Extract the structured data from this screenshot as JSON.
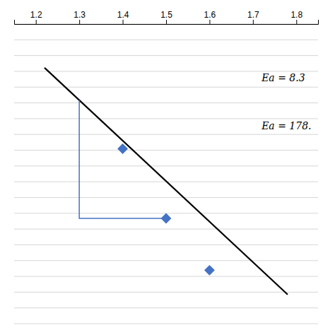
{
  "chart_data": {
    "type": "scatter",
    "xlim": [
      1.15,
      1.85
    ],
    "ylim": [
      -1.0,
      0.85
    ],
    "xticks": [
      1.2,
      1.3,
      1.4,
      1.5,
      1.6,
      1.7,
      1.8
    ],
    "yticks": [
      -1.0,
      -0.902631578947368,
      -0.805263157894737,
      -0.707894736842105,
      -0.610526315789474,
      -0.513157894736842,
      -0.415789473684211,
      -0.318421052631579,
      -0.221052631578947,
      -0.123684210526316,
      -0.026315789473684,
      0.071052631578947,
      0.168421052631579,
      0.265789473684211,
      0.363157894736842,
      0.460526315789474,
      0.557894736842105,
      0.655263157894737,
      0.752631578947368,
      0.85
    ],
    "grid": true,
    "tick_labels": "x",
    "series": [
      {
        "type": "line",
        "color": "black",
        "x": [
          1.22,
          1.78
        ],
        "values": [
          0.58,
          -0.82
        ]
      },
      {
        "type": "line",
        "color": "#4472c4",
        "x": [
          1.3,
          1.3,
          1.5
        ],
        "values": [
          0.38,
          -0.35,
          -0.35
        ]
      },
      {
        "type": "scatter",
        "color": "#4472c4",
        "marker": "diamond",
        "x": [
          1.4,
          1.5,
          1.6
        ],
        "values": [
          0.08,
          -0.35,
          -0.67
        ]
      }
    ],
    "annotations": [
      {
        "text": "Ea = 8.3",
        "x": 1.72,
        "y": 0.52
      },
      {
        "text": "Ea = 178.",
        "x": 1.72,
        "y": 0.22
      }
    ]
  }
}
